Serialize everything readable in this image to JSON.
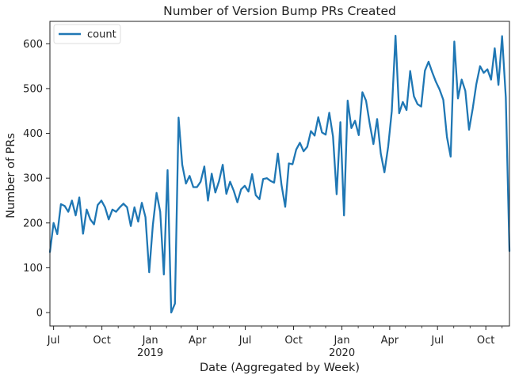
{
  "chart_data": {
    "type": "line",
    "title": "Number of Version Bump PRs Created",
    "xlabel": "Date (Aggregated by Week)",
    "ylabel": "Number of PRs",
    "ylim": [
      -30,
      650
    ],
    "xlim": [
      "2018-06-24",
      "2020-11-15"
    ],
    "yticks": [
      0,
      100,
      200,
      300,
      400,
      500,
      600
    ],
    "xticks": [
      {
        "date": "2018-07-01",
        "label": "Jul",
        "sublabel": ""
      },
      {
        "date": "2018-10-01",
        "label": "Oct",
        "sublabel": ""
      },
      {
        "date": "2019-01-01",
        "label": "Jan",
        "sublabel": "2019"
      },
      {
        "date": "2019-04-01",
        "label": "Apr",
        "sublabel": ""
      },
      {
        "date": "2019-07-01",
        "label": "Jul",
        "sublabel": ""
      },
      {
        "date": "2019-10-01",
        "label": "Oct",
        "sublabel": ""
      },
      {
        "date": "2020-01-01",
        "label": "Jan",
        "sublabel": "2020"
      },
      {
        "date": "2020-04-01",
        "label": "Apr",
        "sublabel": ""
      },
      {
        "date": "2020-07-01",
        "label": "Jul",
        "sublabel": ""
      },
      {
        "date": "2020-10-01",
        "label": "Oct",
        "sublabel": ""
      }
    ],
    "grid": false,
    "legend": {
      "position": "top-left",
      "entries": [
        "count"
      ]
    },
    "series": [
      {
        "name": "count",
        "color": "#1f77b4",
        "points": [
          [
            "2018-06-24",
            135
          ],
          [
            "2018-07-01",
            200
          ],
          [
            "2018-07-08",
            175
          ],
          [
            "2018-07-15",
            242
          ],
          [
            "2018-07-22",
            238
          ],
          [
            "2018-07-29",
            225
          ],
          [
            "2018-08-05",
            250
          ],
          [
            "2018-08-12",
            217
          ],
          [
            "2018-08-19",
            257
          ],
          [
            "2018-08-26",
            176
          ],
          [
            "2018-09-02",
            230
          ],
          [
            "2018-09-09",
            208
          ],
          [
            "2018-09-16",
            197
          ],
          [
            "2018-09-23",
            240
          ],
          [
            "2018-09-30",
            250
          ],
          [
            "2018-10-07",
            235
          ],
          [
            "2018-10-14",
            208
          ],
          [
            "2018-10-21",
            230
          ],
          [
            "2018-10-28",
            225
          ],
          [
            "2018-11-04",
            235
          ],
          [
            "2018-11-11",
            243
          ],
          [
            "2018-11-18",
            235
          ],
          [
            "2018-11-25",
            193
          ],
          [
            "2018-12-02",
            235
          ],
          [
            "2018-12-09",
            203
          ],
          [
            "2018-12-16",
            245
          ],
          [
            "2018-12-23",
            213
          ],
          [
            "2018-12-30",
            90
          ],
          [
            "2019-01-06",
            195
          ],
          [
            "2019-01-13",
            267
          ],
          [
            "2019-01-20",
            225
          ],
          [
            "2019-01-27",
            85
          ],
          [
            "2019-02-03",
            318
          ],
          [
            "2019-02-10",
            0
          ],
          [
            "2019-02-17",
            20
          ],
          [
            "2019-02-24",
            435
          ],
          [
            "2019-03-03",
            330
          ],
          [
            "2019-03-10",
            288
          ],
          [
            "2019-03-17",
            305
          ],
          [
            "2019-03-24",
            280
          ],
          [
            "2019-03-31",
            280
          ],
          [
            "2019-04-07",
            292
          ],
          [
            "2019-04-14",
            326
          ],
          [
            "2019-04-21",
            250
          ],
          [
            "2019-04-28",
            310
          ],
          [
            "2019-05-05",
            268
          ],
          [
            "2019-05-12",
            293
          ],
          [
            "2019-05-19",
            330
          ],
          [
            "2019-05-26",
            265
          ],
          [
            "2019-06-02",
            292
          ],
          [
            "2019-06-09",
            272
          ],
          [
            "2019-06-16",
            246
          ],
          [
            "2019-06-23",
            275
          ],
          [
            "2019-06-30",
            283
          ],
          [
            "2019-07-07",
            270
          ],
          [
            "2019-07-14",
            309
          ],
          [
            "2019-07-21",
            262
          ],
          [
            "2019-07-28",
            253
          ],
          [
            "2019-08-04",
            298
          ],
          [
            "2019-08-11",
            300
          ],
          [
            "2019-08-18",
            294
          ],
          [
            "2019-08-25",
            290
          ],
          [
            "2019-09-01",
            355
          ],
          [
            "2019-09-08",
            285
          ],
          [
            "2019-09-15",
            236
          ],
          [
            "2019-09-22",
            333
          ],
          [
            "2019-09-29",
            331
          ],
          [
            "2019-10-06",
            364
          ],
          [
            "2019-10-13",
            379
          ],
          [
            "2019-10-20",
            360
          ],
          [
            "2019-10-27",
            370
          ],
          [
            "2019-11-03",
            405
          ],
          [
            "2019-11-10",
            395
          ],
          [
            "2019-11-17",
            436
          ],
          [
            "2019-11-24",
            402
          ],
          [
            "2019-12-01",
            397
          ],
          [
            "2019-12-08",
            446
          ],
          [
            "2019-12-15",
            393
          ],
          [
            "2019-12-22",
            264
          ],
          [
            "2019-12-29",
            425
          ],
          [
            "2020-01-05",
            217
          ],
          [
            "2020-01-12",
            473
          ],
          [
            "2020-01-19",
            412
          ],
          [
            "2020-01-26",
            428
          ],
          [
            "2020-02-02",
            396
          ],
          [
            "2020-02-09",
            492
          ],
          [
            "2020-02-16",
            473
          ],
          [
            "2020-02-23",
            421
          ],
          [
            "2020-03-01",
            376
          ],
          [
            "2020-03-08",
            432
          ],
          [
            "2020-03-15",
            355
          ],
          [
            "2020-03-22",
            313
          ],
          [
            "2020-03-29",
            370
          ],
          [
            "2020-04-05",
            450
          ],
          [
            "2020-04-12",
            618
          ],
          [
            "2020-04-19",
            445
          ],
          [
            "2020-04-26",
            470
          ],
          [
            "2020-05-03",
            452
          ],
          [
            "2020-05-10",
            539
          ],
          [
            "2020-05-17",
            483
          ],
          [
            "2020-05-24",
            465
          ],
          [
            "2020-05-31",
            460
          ],
          [
            "2020-06-07",
            540
          ],
          [
            "2020-06-14",
            560
          ],
          [
            "2020-06-21",
            536
          ],
          [
            "2020-06-28",
            515
          ],
          [
            "2020-07-05",
            498
          ],
          [
            "2020-07-12",
            475
          ],
          [
            "2020-07-19",
            392
          ],
          [
            "2020-07-26",
            348
          ],
          [
            "2020-08-02",
            605
          ],
          [
            "2020-08-09",
            478
          ],
          [
            "2020-08-16",
            520
          ],
          [
            "2020-08-23",
            495
          ],
          [
            "2020-08-30",
            408
          ],
          [
            "2020-09-06",
            455
          ],
          [
            "2020-09-13",
            510
          ],
          [
            "2020-09-20",
            550
          ],
          [
            "2020-09-27",
            535
          ],
          [
            "2020-10-04",
            543
          ],
          [
            "2020-10-11",
            520
          ],
          [
            "2020-10-18",
            590
          ],
          [
            "2020-10-25",
            508
          ],
          [
            "2020-11-01",
            617
          ],
          [
            "2020-11-08",
            480
          ],
          [
            "2020-11-15",
            137
          ]
        ]
      }
    ]
  }
}
